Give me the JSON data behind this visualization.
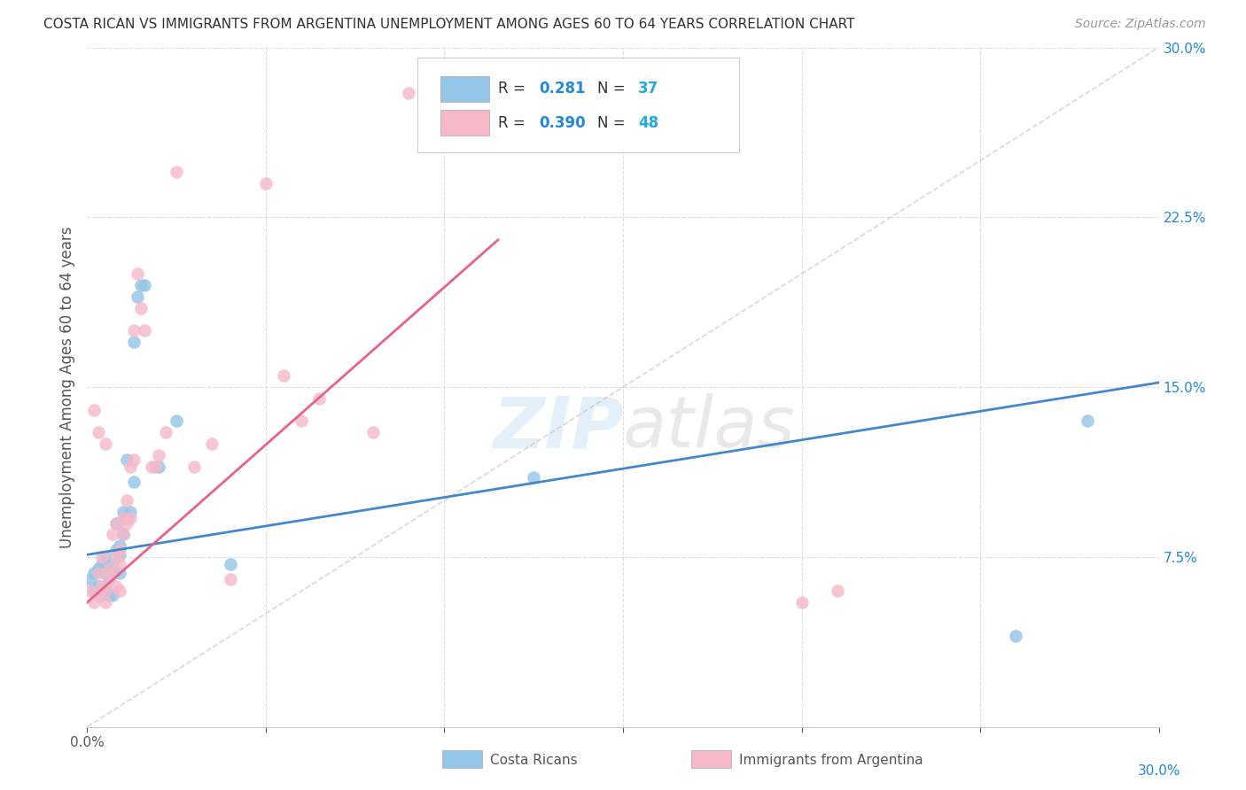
{
  "title": "COSTA RICAN VS IMMIGRANTS FROM ARGENTINA UNEMPLOYMENT AMONG AGES 60 TO 64 YEARS CORRELATION CHART",
  "source": "Source: ZipAtlas.com",
  "ylabel": "Unemployment Among Ages 60 to 64 years",
  "xlim": [
    0.0,
    0.3
  ],
  "ylim": [
    0.0,
    0.3
  ],
  "watermark": "ZIPatlas",
  "legend_r1": "R =  0.281",
  "legend_n1": "N = 37",
  "legend_r2": "R =  0.390",
  "legend_n2": "N = 48",
  "legend_label1": "Costa Ricans",
  "legend_label2": "Immigrants from Argentina",
  "color_blue": "#93c5e8",
  "color_pink": "#f5b8c8",
  "line_color_blue": "#4488cc",
  "line_color_pink": "#e86090",
  "line_color_diag": "#c8c8c8",
  "costa_rican_x": [
    0.001,
    0.002,
    0.002,
    0.003,
    0.003,
    0.004,
    0.004,
    0.005,
    0.005,
    0.005,
    0.006,
    0.006,
    0.006,
    0.007,
    0.007,
    0.007,
    0.008,
    0.008,
    0.009,
    0.009,
    0.009,
    0.01,
    0.01,
    0.011,
    0.011,
    0.012,
    0.013,
    0.013,
    0.014,
    0.015,
    0.016,
    0.02,
    0.025,
    0.04,
    0.125,
    0.26,
    0.28
  ],
  "costa_rican_y": [
    0.065,
    0.06,
    0.068,
    0.062,
    0.07,
    0.058,
    0.072,
    0.068,
    0.075,
    0.062,
    0.07,
    0.065,
    0.058,
    0.072,
    0.068,
    0.058,
    0.078,
    0.09,
    0.08,
    0.076,
    0.068,
    0.095,
    0.085,
    0.092,
    0.118,
    0.095,
    0.108,
    0.17,
    0.19,
    0.195,
    0.195,
    0.115,
    0.135,
    0.072,
    0.11,
    0.04,
    0.135
  ],
  "argentina_x": [
    0.001,
    0.002,
    0.002,
    0.003,
    0.003,
    0.003,
    0.004,
    0.004,
    0.005,
    0.005,
    0.005,
    0.006,
    0.006,
    0.007,
    0.007,
    0.008,
    0.008,
    0.008,
    0.009,
    0.009,
    0.009,
    0.01,
    0.01,
    0.011,
    0.011,
    0.012,
    0.012,
    0.013,
    0.013,
    0.014,
    0.015,
    0.016,
    0.018,
    0.019,
    0.02,
    0.022,
    0.025,
    0.03,
    0.035,
    0.04,
    0.05,
    0.055,
    0.06,
    0.065,
    0.08,
    0.09,
    0.2,
    0.21
  ],
  "argentina_y": [
    0.06,
    0.055,
    0.14,
    0.068,
    0.13,
    0.058,
    0.062,
    0.075,
    0.06,
    0.055,
    0.125,
    0.065,
    0.07,
    0.068,
    0.085,
    0.062,
    0.09,
    0.075,
    0.078,
    0.072,
    0.06,
    0.092,
    0.085,
    0.1,
    0.09,
    0.092,
    0.115,
    0.118,
    0.175,
    0.2,
    0.185,
    0.175,
    0.115,
    0.115,
    0.12,
    0.13,
    0.245,
    0.115,
    0.125,
    0.065,
    0.24,
    0.155,
    0.135,
    0.145,
    0.13,
    0.28,
    0.055,
    0.06
  ],
  "blue_line_x": [
    0.0,
    0.3
  ],
  "blue_line_y": [
    0.076,
    0.152
  ],
  "pink_line_x": [
    0.0,
    0.115
  ],
  "pink_line_y": [
    0.055,
    0.215
  ]
}
